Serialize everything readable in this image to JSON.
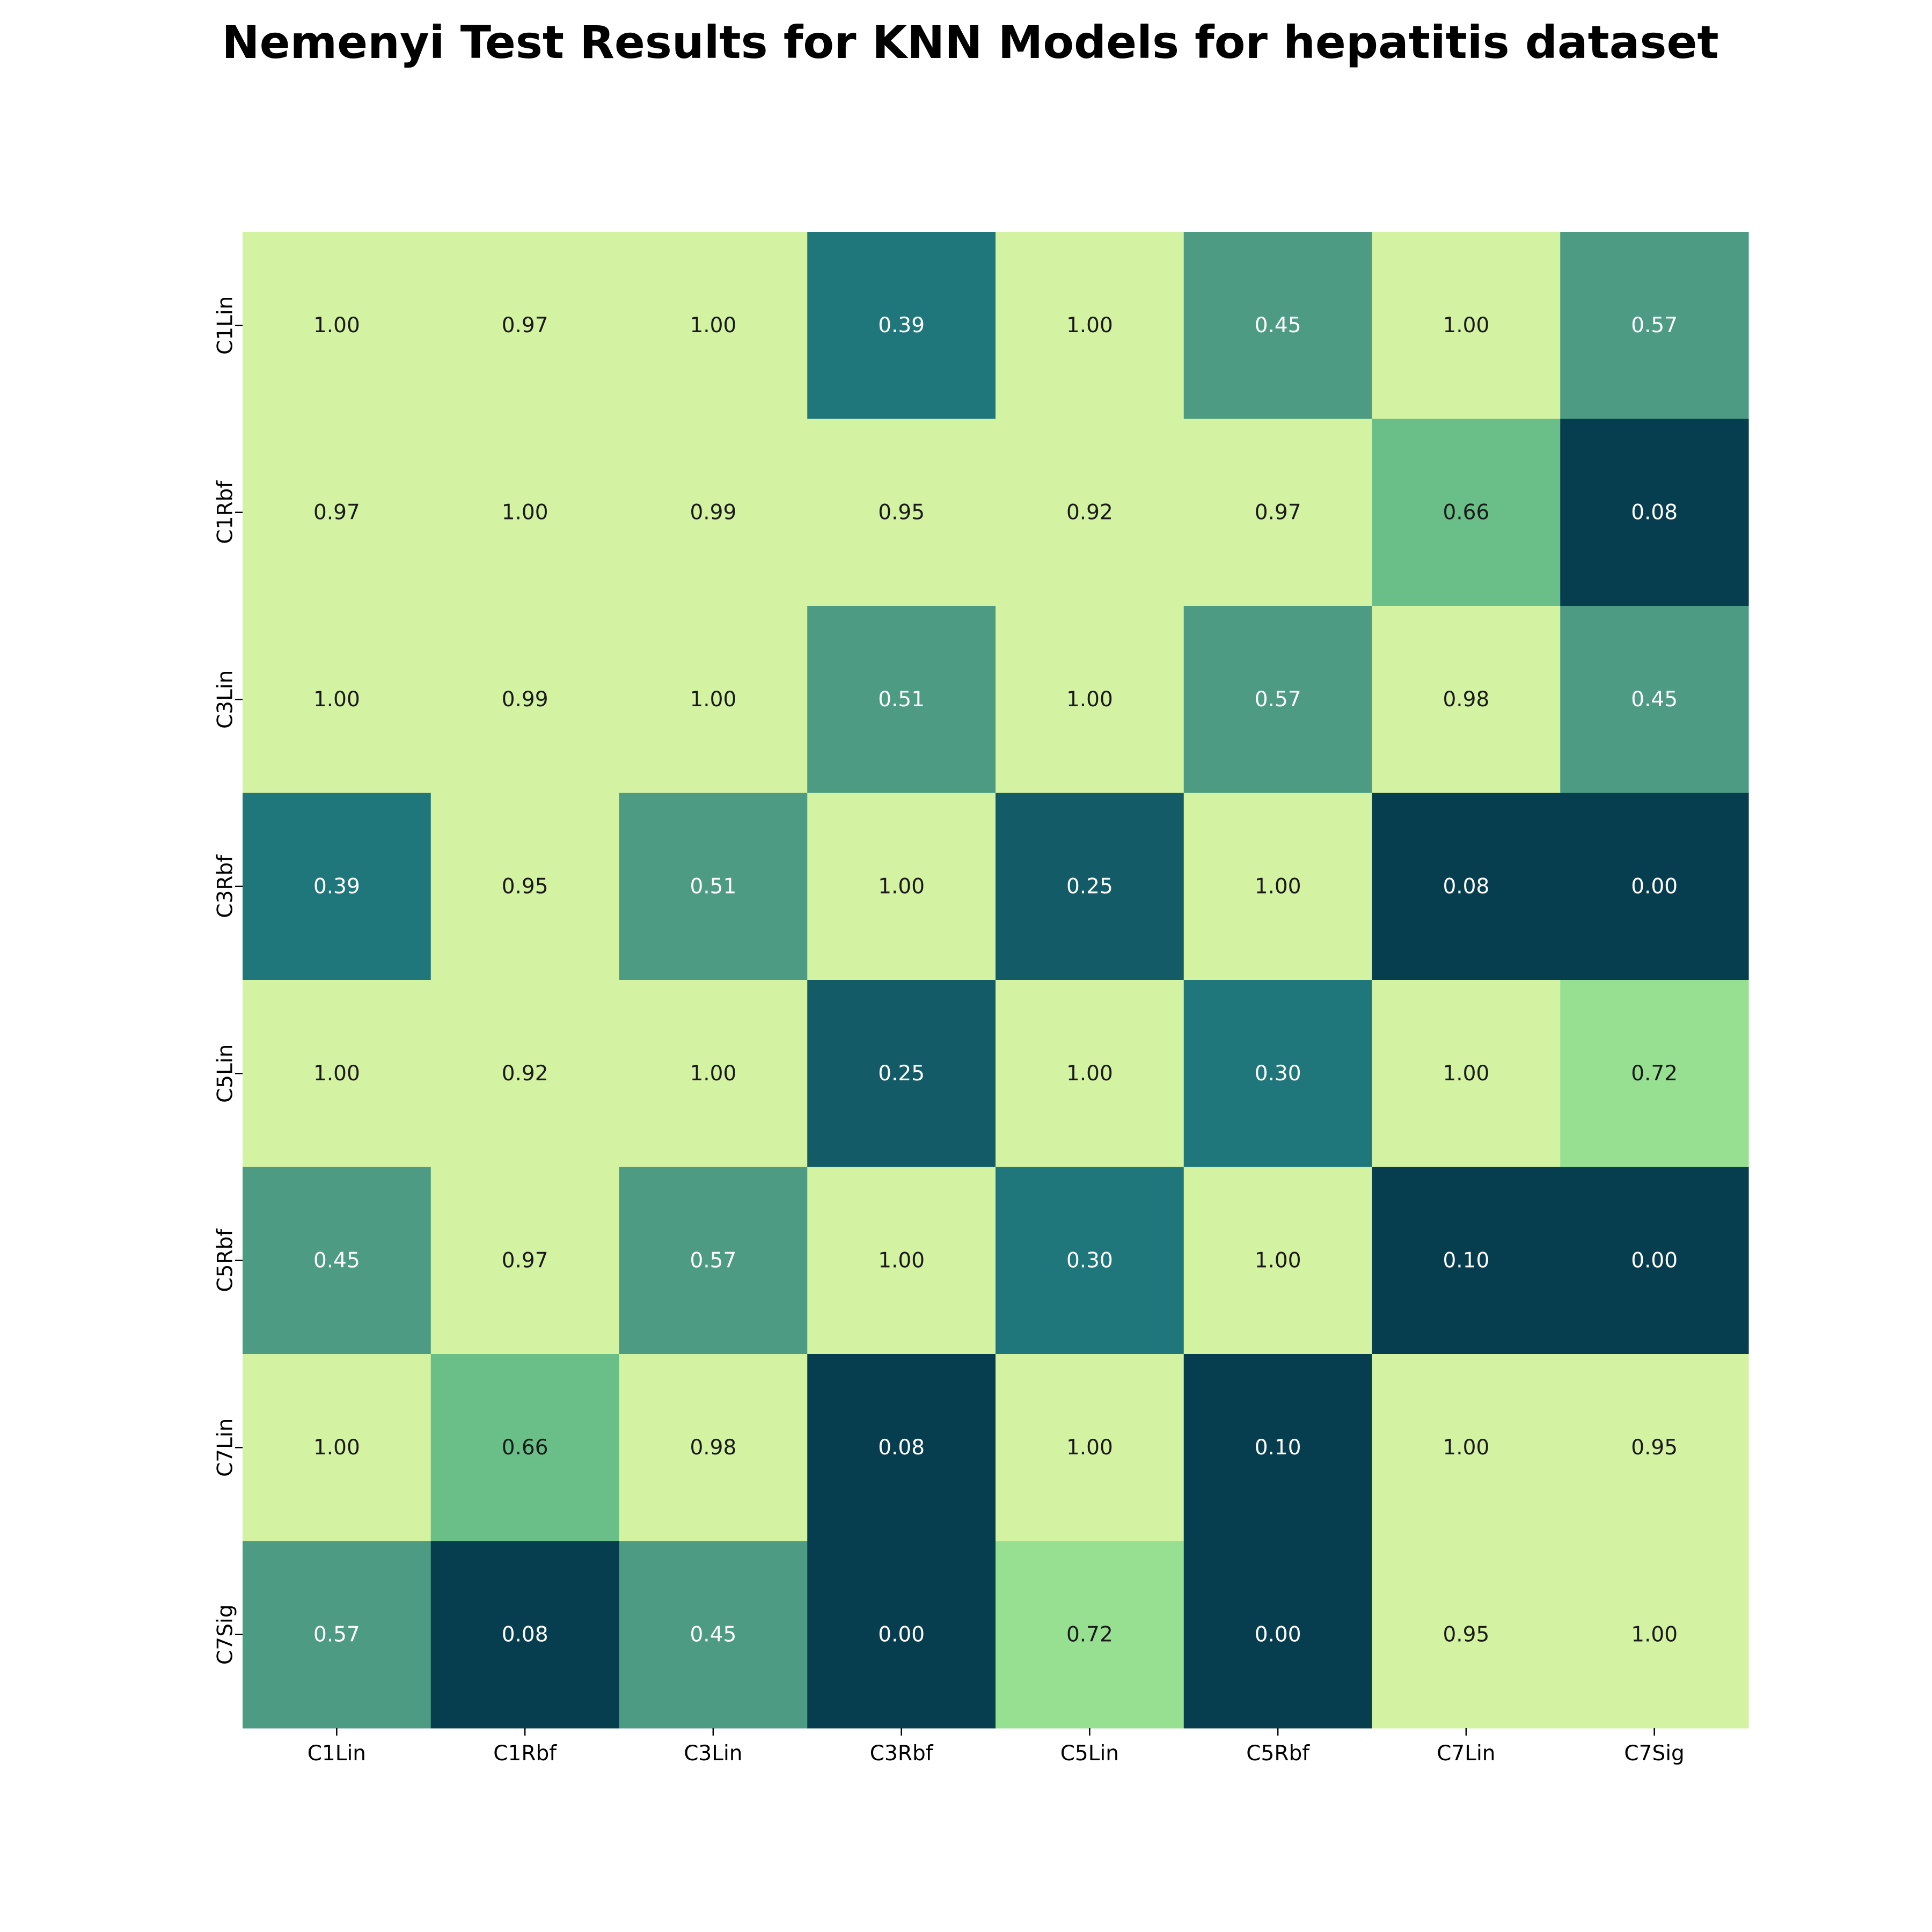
{
  "chart_data": {
    "type": "heatmap",
    "title": "Nemenyi Test Results for KNN Models for hepatitis dataset",
    "xlabel": "",
    "ylabel": "",
    "x_categories": [
      "C1Lin",
      "C1Rbf",
      "C3Lin",
      "C3Rbf",
      "C5Lin",
      "C5Rbf",
      "C7Lin",
      "C7Sig"
    ],
    "y_categories": [
      "C1Lin",
      "C1Rbf",
      "C3Lin",
      "C3Rbf",
      "C5Lin",
      "C5Rbf",
      "C7Lin",
      "C7Sig"
    ],
    "values": [
      [
        1.0,
        0.97,
        1.0,
        0.39,
        1.0,
        0.45,
        1.0,
        0.57
      ],
      [
        0.97,
        1.0,
        0.99,
        0.95,
        0.92,
        0.97,
        0.66,
        0.08
      ],
      [
        1.0,
        0.99,
        1.0,
        0.51,
        1.0,
        0.57,
        0.98,
        0.45
      ],
      [
        0.39,
        0.95,
        0.51,
        1.0,
        0.25,
        1.0,
        0.08,
        0.0
      ],
      [
        1.0,
        0.92,
        1.0,
        0.25,
        1.0,
        0.3,
        1.0,
        0.72
      ],
      [
        0.45,
        0.97,
        0.57,
        1.0,
        0.3,
        1.0,
        0.1,
        0.0
      ],
      [
        1.0,
        0.66,
        0.98,
        0.08,
        1.0,
        0.1,
        1.0,
        0.95
      ],
      [
        0.57,
        0.08,
        0.45,
        0.0,
        0.72,
        0.0,
        0.95,
        1.0
      ]
    ],
    "value_format": "0.00",
    "color_scale": {
      "stops": [
        {
          "max": 0.2,
          "color": "#073e4f"
        },
        {
          "max": 0.3,
          "color": "#135b67"
        },
        {
          "max": 0.4,
          "color": "#20777b"
        },
        {
          "max": 0.6,
          "color": "#4c9b82"
        },
        {
          "max": 0.7,
          "color": "#6abf88"
        },
        {
          "max": 0.8,
          "color": "#97e092"
        },
        {
          "max": 1.01,
          "color": "#d3f2a2"
        }
      ],
      "light_text_color": "#ffffff",
      "dark_text_color": "#1a1a1a",
      "dark_text_threshold": 0.6
    },
    "legend": "none",
    "grid": false
  }
}
